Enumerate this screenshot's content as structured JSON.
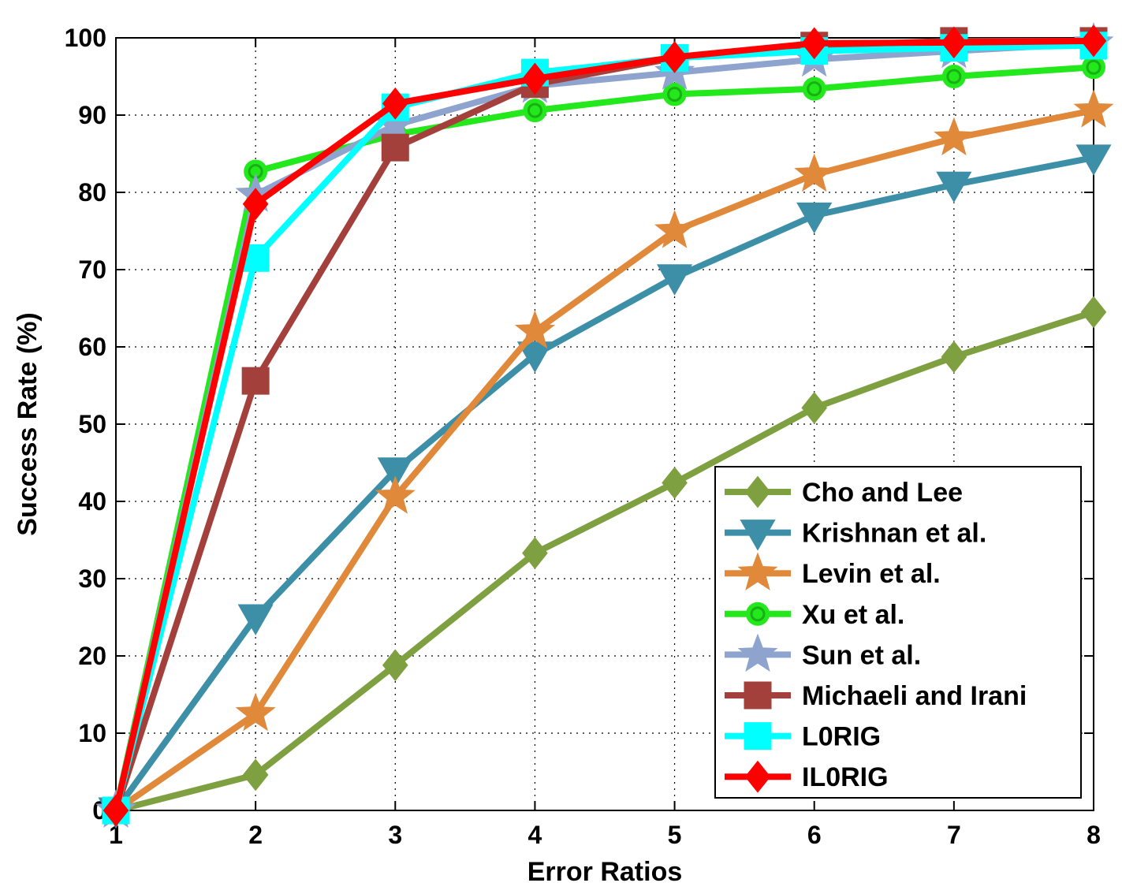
{
  "chart_data": {
    "type": "line",
    "title": "",
    "xlabel": "Error Ratios",
    "ylabel": "Success Rate (%)",
    "xlim": [
      1,
      8
    ],
    "ylim": [
      0,
      100
    ],
    "xticks": [
      "1",
      "2",
      "3",
      "4",
      "5",
      "6",
      "7",
      "8"
    ],
    "yticks": [
      "0",
      "10",
      "20",
      "30",
      "40",
      "50",
      "60",
      "70",
      "80",
      "90",
      "100"
    ],
    "grid": true,
    "legend_position": "bottom-right",
    "x": [
      1,
      2,
      3,
      4,
      5,
      6,
      7,
      8
    ],
    "series": [
      {
        "name": "Cho and Lee",
        "color": "#7fa040",
        "marker": "diamond",
        "values": [
          0,
          4.6,
          18.8,
          33.3,
          42.4,
          52.1,
          58.7,
          64.5
        ]
      },
      {
        "name": "Krishnan et al.",
        "color": "#3d8fa8",
        "marker": "triangle-down",
        "values": [
          0,
          25.0,
          44.0,
          59.0,
          69.0,
          77.0,
          81.0,
          84.5
        ]
      },
      {
        "name": "Levin et al.",
        "color": "#e0893a",
        "marker": "star",
        "values": [
          0,
          12.5,
          40.6,
          62.0,
          75.0,
          82.3,
          87.0,
          90.6
        ]
      },
      {
        "name": "Xu et al.",
        "color": "#22e81c",
        "marker": "circle",
        "values": [
          0,
          82.7,
          87.5,
          90.6,
          92.7,
          93.4,
          95.0,
          96.2
        ]
      },
      {
        "name": "Sun et al.",
        "color": "#8fa3cf",
        "marker": "star",
        "values": [
          0,
          79.7,
          88.7,
          93.8,
          95.5,
          97.2,
          98.3,
          99.3
        ]
      },
      {
        "name": "Michaeli and Irani",
        "color": "#a3403b",
        "marker": "square",
        "values": [
          0,
          55.6,
          85.8,
          94.0,
          97.4,
          99.0,
          99.6,
          99.6
        ]
      },
      {
        "name": "L0RIG",
        "color": "#00ffff",
        "marker": "square",
        "values": [
          0,
          71.5,
          91.0,
          95.5,
          97.4,
          98.3,
          98.7,
          99.0
        ]
      },
      {
        "name": "IL0RIG",
        "color": "#ff0000",
        "marker": "diamond",
        "values": [
          0,
          78.5,
          91.5,
          94.7,
          97.5,
          99.3,
          99.4,
          99.6
        ]
      }
    ]
  }
}
